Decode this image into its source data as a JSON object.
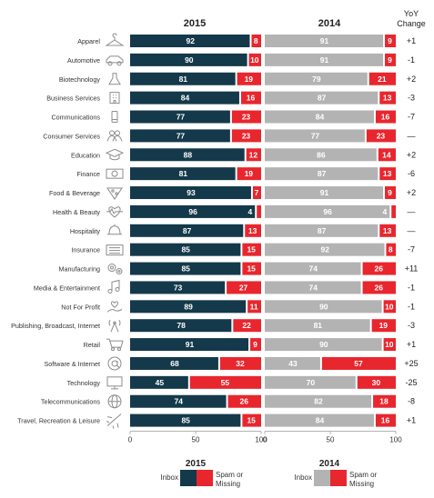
{
  "chart_data": {
    "type": "bar",
    "stacked": true,
    "groups": [
      {
        "name": "2015",
        "series": [
          "Inbox",
          "Spam or Missing"
        ]
      },
      {
        "name": "2014",
        "series": [
          "Inbox",
          "Spam or Missing"
        ]
      }
    ],
    "yoy_header": [
      "YoY",
      "Change"
    ],
    "categories": [
      "Apparel",
      "Automotive",
      "Biotechnology",
      "Business Services",
      "Communications",
      "Consumer Services",
      "Education",
      "Finance",
      "Food & Beverage",
      "Health & Beauty",
      "Hospitality",
      "Insurance",
      "Manufacturing",
      "Media & Entertainment",
      "Not For Profit",
      "Publishing, Broadcast, Internet",
      "Retail",
      "Software & Internet",
      "Technology",
      "Telecommunications",
      "Travel, Recreation & Leisure"
    ],
    "icons": [
      "hanger-icon",
      "car-icon",
      "flask-icon",
      "building-icon",
      "phone-icon",
      "people-icon",
      "graduation-cap-icon",
      "banknote-icon",
      "pizza-icon",
      "heart-pulse-icon",
      "bell-icon",
      "ledger-icon",
      "gears-icon",
      "music-note-icon",
      "heart-hand-icon",
      "broadcast-tower-icon",
      "shopping-cart-icon",
      "at-sign-icon",
      "monitor-icon",
      "globe-icon",
      "airplane-icon"
    ],
    "series_2015": {
      "inbox": [
        92,
        90,
        81,
        84,
        77,
        77,
        88,
        81,
        93,
        96,
        87,
        85,
        85,
        73,
        89,
        78,
        91,
        68,
        45,
        74,
        85
      ],
      "spam": [
        8,
        10,
        19,
        16,
        23,
        23,
        12,
        19,
        7,
        4,
        13,
        15,
        15,
        27,
        11,
        22,
        9,
        32,
        55,
        26,
        15
      ]
    },
    "series_2014": {
      "inbox": [
        91,
        91,
        79,
        87,
        84,
        77,
        86,
        87,
        91,
        96,
        87,
        92,
        74,
        74,
        90,
        81,
        90,
        43,
        70,
        82,
        84
      ],
      "spam": [
        9,
        9,
        21,
        13,
        16,
        23,
        14,
        13,
        9,
        4,
        13,
        8,
        26,
        26,
        10,
        19,
        10,
        57,
        30,
        18,
        16
      ]
    },
    "yoy_change": [
      "+1",
      "-1",
      "+2",
      "-3",
      "-7",
      "—",
      "+2",
      "-6",
      "+2",
      "—",
      "—",
      "-7",
      "+11",
      "-1",
      "-1",
      "-3",
      "+1",
      "+25",
      "-25",
      "-8",
      "+1"
    ],
    "xlim": [
      0,
      100
    ],
    "xticks": [
      0,
      50,
      100
    ],
    "legend": {
      "group_2015": "2015",
      "group_2014": "2014",
      "inbox_label": "Inbox",
      "spam_label_1": "Spam or",
      "spam_label_2": "Missing"
    },
    "colors": {
      "inbox_2015": "#14394a",
      "inbox_2014": "#b3b3b3",
      "spam": "#e8262e"
    }
  }
}
